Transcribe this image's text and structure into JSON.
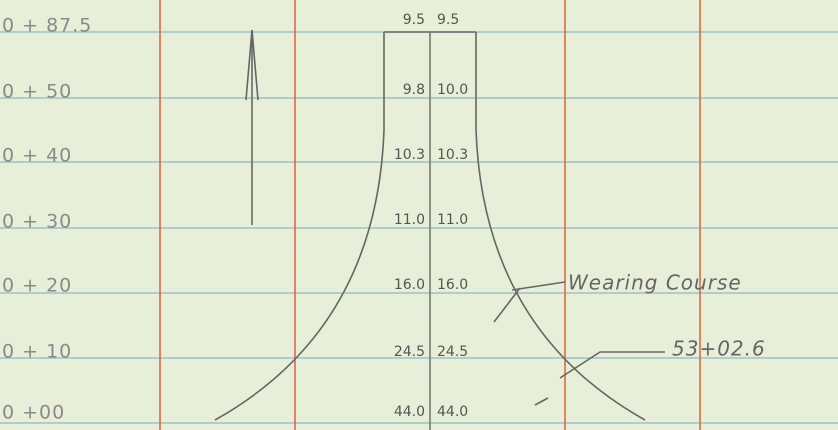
{
  "stations": [
    {
      "label": "0 + 87.5",
      "left": "9.5",
      "right": "9.5"
    },
    {
      "label": "0 + 50",
      "left": "9.8",
      "right": "10.0"
    },
    {
      "label": "0 + 40",
      "left": "10.3",
      "right": "10.3"
    },
    {
      "label": "0 + 30",
      "left": "11.0",
      "right": "11.0"
    },
    {
      "label": "0 + 20",
      "left": "16.0",
      "right": "16.0"
    },
    {
      "label": "0 + 10",
      "left": "24.5",
      "right": "24.5"
    },
    {
      "label": "0 +00",
      "left": "44.0",
      "right": "44.0"
    }
  ],
  "annotations": {
    "wearing_course": "Wearing Course",
    "station": "53+02.6"
  }
}
